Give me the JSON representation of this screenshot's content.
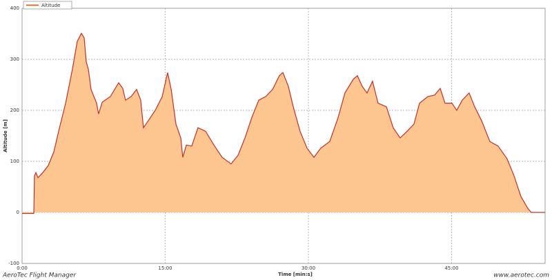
{
  "chart_data": {
    "type": "area",
    "x_label": "Time [min:s]",
    "y_label": "Altitude [m]",
    "footer_left": "AeroTec Flight Manager",
    "footer_right": "www.aerotec.com",
    "xlim": [
      0,
      54.8
    ],
    "xticks": [
      {
        "value": 0,
        "label": "0:00"
      },
      {
        "value": 15,
        "label": "15:00"
      },
      {
        "value": 30,
        "label": "30:00"
      },
      {
        "value": 45,
        "label": "45:00"
      }
    ],
    "ylim": [
      -100,
      400
    ],
    "yticks": [
      -100,
      0,
      100,
      200,
      300,
      400
    ],
    "grid": true,
    "legend": "top-left",
    "series": [
      {
        "name": "Altitude",
        "color": "#c0302a",
        "fill": "#fdc590",
        "x": [
          0,
          1.23,
          1.3,
          1.45,
          1.66,
          2.17,
          2.75,
          3.33,
          3.83,
          4.56,
          5.28,
          5.78,
          6.22,
          6.51,
          6.72,
          6.94,
          7.23,
          7.81,
          8.02,
          8.39,
          9.25,
          10.12,
          10.55,
          10.84,
          11.42,
          12.0,
          12.43,
          12.72,
          13.23,
          13.95,
          14.68,
          15.25,
          15.62,
          16.12,
          16.63,
          16.84,
          17.21,
          17.78,
          18.43,
          19.23,
          20.1,
          20.96,
          21.9,
          22.63,
          23.35,
          24.07,
          24.8,
          25.52,
          26.24,
          26.96,
          27.33,
          27.9,
          28.41,
          29.13,
          29.86,
          30.58,
          31.3,
          32.24,
          33.11,
          33.83,
          34.7,
          35.13,
          35.64,
          36.14,
          36.72,
          37.3,
          38.17,
          38.89,
          39.61,
          40.34,
          41.06,
          41.64,
          42.51,
          43.23,
          43.81,
          44.31,
          45.04,
          45.54,
          46.12,
          46.84,
          47.42,
          48.14,
          49.01,
          49.88,
          50.82,
          51.54,
          52.27,
          52.99,
          53.35,
          54.8
        ],
        "values": [
          -2,
          -2,
          72,
          78,
          68,
          78,
          92,
          119,
          159,
          214,
          281,
          335,
          351,
          342,
          295,
          281,
          241,
          214,
          193,
          216,
          227,
          254,
          243,
          220,
          227,
          241,
          220,
          166,
          180,
          200,
          227,
          274,
          241,
          173,
          146,
          108,
          132,
          130,
          166,
          159,
          132,
          108,
          95,
          112,
          146,
          186,
          220,
          227,
          241,
          268,
          274,
          247,
          207,
          159,
          126,
          108,
          126,
          139,
          186,
          234,
          261,
          268,
          247,
          234,
          257,
          214,
          207,
          166,
          146,
          159,
          173,
          214,
          227,
          230,
          243,
          214,
          214,
          200,
          220,
          234,
          207,
          180,
          139,
          130,
          105,
          72,
          31,
          8,
          0,
          0
        ]
      }
    ]
  }
}
